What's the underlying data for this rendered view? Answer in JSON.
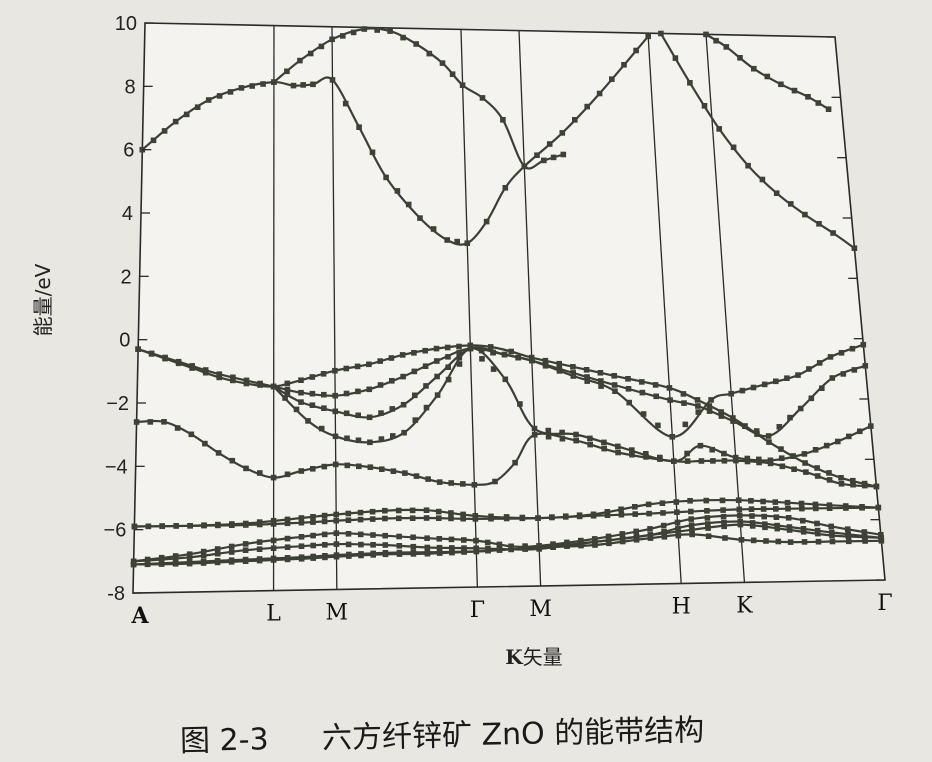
{
  "chart_data": {
    "type": "line",
    "ylabel": "能量/eV",
    "xlabel": "K矢量",
    "xlabel_bold_prefix": "K",
    "xlabel_rest": "矢量",
    "ylim": [
      -8,
      10
    ],
    "yticks": [
      -8,
      -6,
      -4,
      -2,
      0,
      2,
      4,
      6,
      8,
      10
    ],
    "ytick_labels": [
      "-8",
      "−6",
      "−4",
      "−2",
      "0",
      "2",
      "4",
      "6",
      "8",
      "10"
    ],
    "kpoint_labels": [
      "A",
      "L",
      "M",
      "Γ",
      "M",
      "H",
      "K",
      "Γ"
    ],
    "kpoint_x": [
      0,
      1,
      1.45,
      2.45,
      2.9,
      3.9,
      4.35,
      5.35
    ],
    "grid": false,
    "legend": "none",
    "series": [
      {
        "x": [
          0,
          0.25,
          0.5,
          0.75,
          1.0,
          1.15,
          1.3,
          1.45,
          1.65,
          1.85,
          2.1,
          2.3,
          2.45,
          2.6,
          2.75,
          2.9,
          3.2,
          3.5,
          3.9
        ],
        "y": [
          6.0,
          6.9,
          7.6,
          8.0,
          8.2,
          8.1,
          8.15,
          8.3,
          6.8,
          5.2,
          3.9,
          3.2,
          3.1,
          3.8,
          4.9,
          5.6,
          6.7,
          8.0,
          9.9
        ]
      },
      {
        "x": [
          1.0,
          1.2,
          1.45,
          1.7,
          1.9,
          2.1,
          2.3,
          2.45,
          2.6,
          2.75,
          2.9,
          3.05,
          3.2
        ],
        "y": [
          8.2,
          8.9,
          9.6,
          9.95,
          9.9,
          9.5,
          8.9,
          8.2,
          7.8,
          7.1,
          5.6,
          5.8,
          6.0
        ]
      },
      {
        "x": [
          4.0,
          4.2,
          4.4,
          4.6,
          4.8,
          5.0,
          5.2,
          5.35
        ],
        "y": [
          10.0,
          8.4,
          6.9,
          5.7,
          4.8,
          4.1,
          3.5,
          3.0
        ]
      },
      {
        "x": [
          4.35,
          4.5,
          4.7,
          4.9,
          5.1,
          5.25
        ],
        "y": [
          10.0,
          9.6,
          8.9,
          8.4,
          8.0,
          7.6
        ]
      },
      {
        "x": [
          0,
          0.2,
          0.4,
          0.6,
          0.8,
          1.0,
          1.2,
          1.45,
          1.7,
          1.95,
          2.2,
          2.45,
          2.6,
          2.75,
          2.9,
          3.2,
          3.5,
          3.9,
          4.1,
          4.35,
          4.6,
          4.85,
          5.1,
          5.35
        ],
        "y": [
          -0.3,
          -0.6,
          -0.9,
          -1.2,
          -1.4,
          -1.5,
          -1.3,
          -1.0,
          -0.8,
          -0.5,
          -0.3,
          -0.2,
          -0.25,
          -0.4,
          -0.6,
          -0.9,
          -1.2,
          -1.6,
          -2.0,
          -2.6,
          -3.4,
          -4.1,
          -4.6,
          -4.9
        ]
      },
      {
        "x": [
          0,
          0.3,
          0.6,
          1.0,
          1.2,
          1.45,
          1.7,
          1.95,
          2.2,
          2.45,
          2.7,
          2.9,
          3.2,
          3.5,
          3.9,
          4.1,
          4.35,
          4.6,
          4.85,
          5.1,
          5.35
        ],
        "y": [
          -0.3,
          -0.7,
          -1.1,
          -1.5,
          -1.7,
          -1.8,
          -1.6,
          -1.2,
          -0.7,
          -0.3,
          -0.5,
          -0.7,
          -1.1,
          -1.5,
          -2.0,
          -2.2,
          -2.7,
          -3.2,
          -2.3,
          -1.3,
          -0.9
        ]
      },
      {
        "x": [
          1.0,
          1.2,
          1.45,
          1.7,
          1.95,
          2.2,
          2.45,
          2.7,
          2.9,
          3.2,
          3.5,
          3.9,
          4.2,
          4.35,
          4.6,
          4.85,
          5.1,
          5.35
        ],
        "y": [
          -1.5,
          -2.0,
          -2.3,
          -2.5,
          -2.1,
          -1.2,
          -0.3,
          -0.5,
          -0.7,
          -1.2,
          -1.7,
          -3.2,
          -2.0,
          -1.8,
          -1.5,
          -1.2,
          -0.6,
          -0.2
        ]
      },
      {
        "x": [
          1.0,
          1.25,
          1.45,
          1.7,
          1.95,
          2.2,
          2.45,
          2.7,
          2.9,
          3.2,
          3.5,
          3.9,
          4.1,
          4.35,
          4.6,
          4.85,
          5.1,
          5.35
        ],
        "y": [
          -1.5,
          -2.6,
          -3.1,
          -3.3,
          -3.0,
          -1.8,
          -0.3,
          -1.3,
          -2.9,
          -3.1,
          -3.5,
          -4.0,
          -3.5,
          -3.9,
          -4.0,
          -3.8,
          -3.4,
          -2.9
        ]
      },
      {
        "x": [
          0,
          0.2,
          0.4,
          0.6,
          0.8,
          1.0,
          1.2,
          1.45,
          1.7,
          1.95,
          2.2,
          2.45,
          2.6,
          2.75,
          2.9,
          3.2,
          3.5,
          3.9,
          4.1,
          4.35,
          4.6,
          4.85,
          5.1,
          5.35
        ],
        "y": [
          -2.6,
          -2.6,
          -3.0,
          -3.6,
          -4.1,
          -4.4,
          -4.2,
          -4.0,
          -4.1,
          -4.3,
          -4.6,
          -4.7,
          -4.6,
          -4.0,
          -3.1,
          -3.3,
          -3.7,
          -4.0,
          -4.0,
          -4.0,
          -4.1,
          -4.4,
          -4.8,
          -4.9
        ]
      },
      {
        "x": [
          0,
          0.4,
          0.8,
          1.2,
          1.45,
          1.8,
          2.1,
          2.45,
          2.9,
          3.3,
          3.7,
          4.0,
          4.35,
          4.7,
          5.0,
          5.35
        ],
        "y": [
          -5.9,
          -5.9,
          -5.85,
          -5.7,
          -5.6,
          -5.5,
          -5.5,
          -5.7,
          -5.8,
          -5.7,
          -5.4,
          -5.3,
          -5.3,
          -5.4,
          -5.5,
          -5.6
        ]
      },
      {
        "x": [
          0,
          0.4,
          0.8,
          1.2,
          1.45,
          1.8,
          2.1,
          2.45,
          2.9,
          3.3,
          3.7,
          4.0,
          4.35,
          4.7,
          5.0,
          5.35
        ],
        "y": [
          -5.9,
          -5.9,
          -5.9,
          -5.85,
          -5.8,
          -5.75,
          -5.75,
          -5.8,
          -5.8,
          -5.75,
          -5.7,
          -5.65,
          -5.6,
          -5.6,
          -5.6,
          -5.6
        ]
      },
      {
        "x": [
          0,
          0.4,
          0.8,
          1.2,
          1.45,
          1.8,
          2.1,
          2.45,
          2.7,
          2.9,
          3.3,
          3.7,
          4.0,
          4.35,
          4.7,
          5.0,
          5.35
        ],
        "y": [
          -7.0,
          -6.8,
          -6.5,
          -6.3,
          -6.2,
          -6.3,
          -6.4,
          -6.5,
          -6.7,
          -6.7,
          -6.5,
          -6.2,
          -5.9,
          -5.8,
          -5.9,
          -6.2,
          -6.5
        ]
      },
      {
        "x": [
          0,
          0.4,
          0.8,
          1.2,
          1.45,
          1.8,
          2.1,
          2.45,
          2.7,
          2.9,
          3.3,
          3.7,
          4.0,
          4.35,
          4.7,
          5.0,
          5.35
        ],
        "y": [
          -7.0,
          -6.9,
          -6.7,
          -6.6,
          -6.55,
          -6.6,
          -6.7,
          -6.75,
          -6.8,
          -6.8,
          -6.6,
          -6.4,
          -6.1,
          -6.0,
          -6.2,
          -6.4,
          -6.6
        ]
      },
      {
        "x": [
          0,
          0.4,
          0.8,
          1.2,
          1.45,
          1.8,
          2.1,
          2.45,
          2.7,
          2.9,
          3.3,
          3.7,
          4.0,
          4.35,
          4.7,
          5.0,
          5.35
        ],
        "y": [
          -7.1,
          -7.05,
          -7.0,
          -6.95,
          -6.9,
          -6.85,
          -6.85,
          -6.85,
          -6.8,
          -6.75,
          -6.6,
          -6.4,
          -6.25,
          -6.1,
          -6.3,
          -6.5,
          -6.6
        ]
      },
      {
        "x": [
          0,
          0.4,
          0.8,
          1.2,
          1.45,
          1.8,
          2.1,
          2.45,
          2.7,
          2.9,
          3.3,
          3.7,
          4.0,
          4.35,
          4.7,
          5.0,
          5.35
        ],
        "y": [
          -7.1,
          -7.1,
          -7.05,
          -7.0,
          -6.95,
          -6.9,
          -6.9,
          -6.85,
          -6.8,
          -6.75,
          -6.7,
          -6.5,
          -6.4,
          -6.6,
          -6.7,
          -6.7,
          -6.7
        ]
      }
    ]
  },
  "caption": {
    "prefix": "图 2-3",
    "text": "六方纤锌矿 ZnO 的能带结构"
  }
}
